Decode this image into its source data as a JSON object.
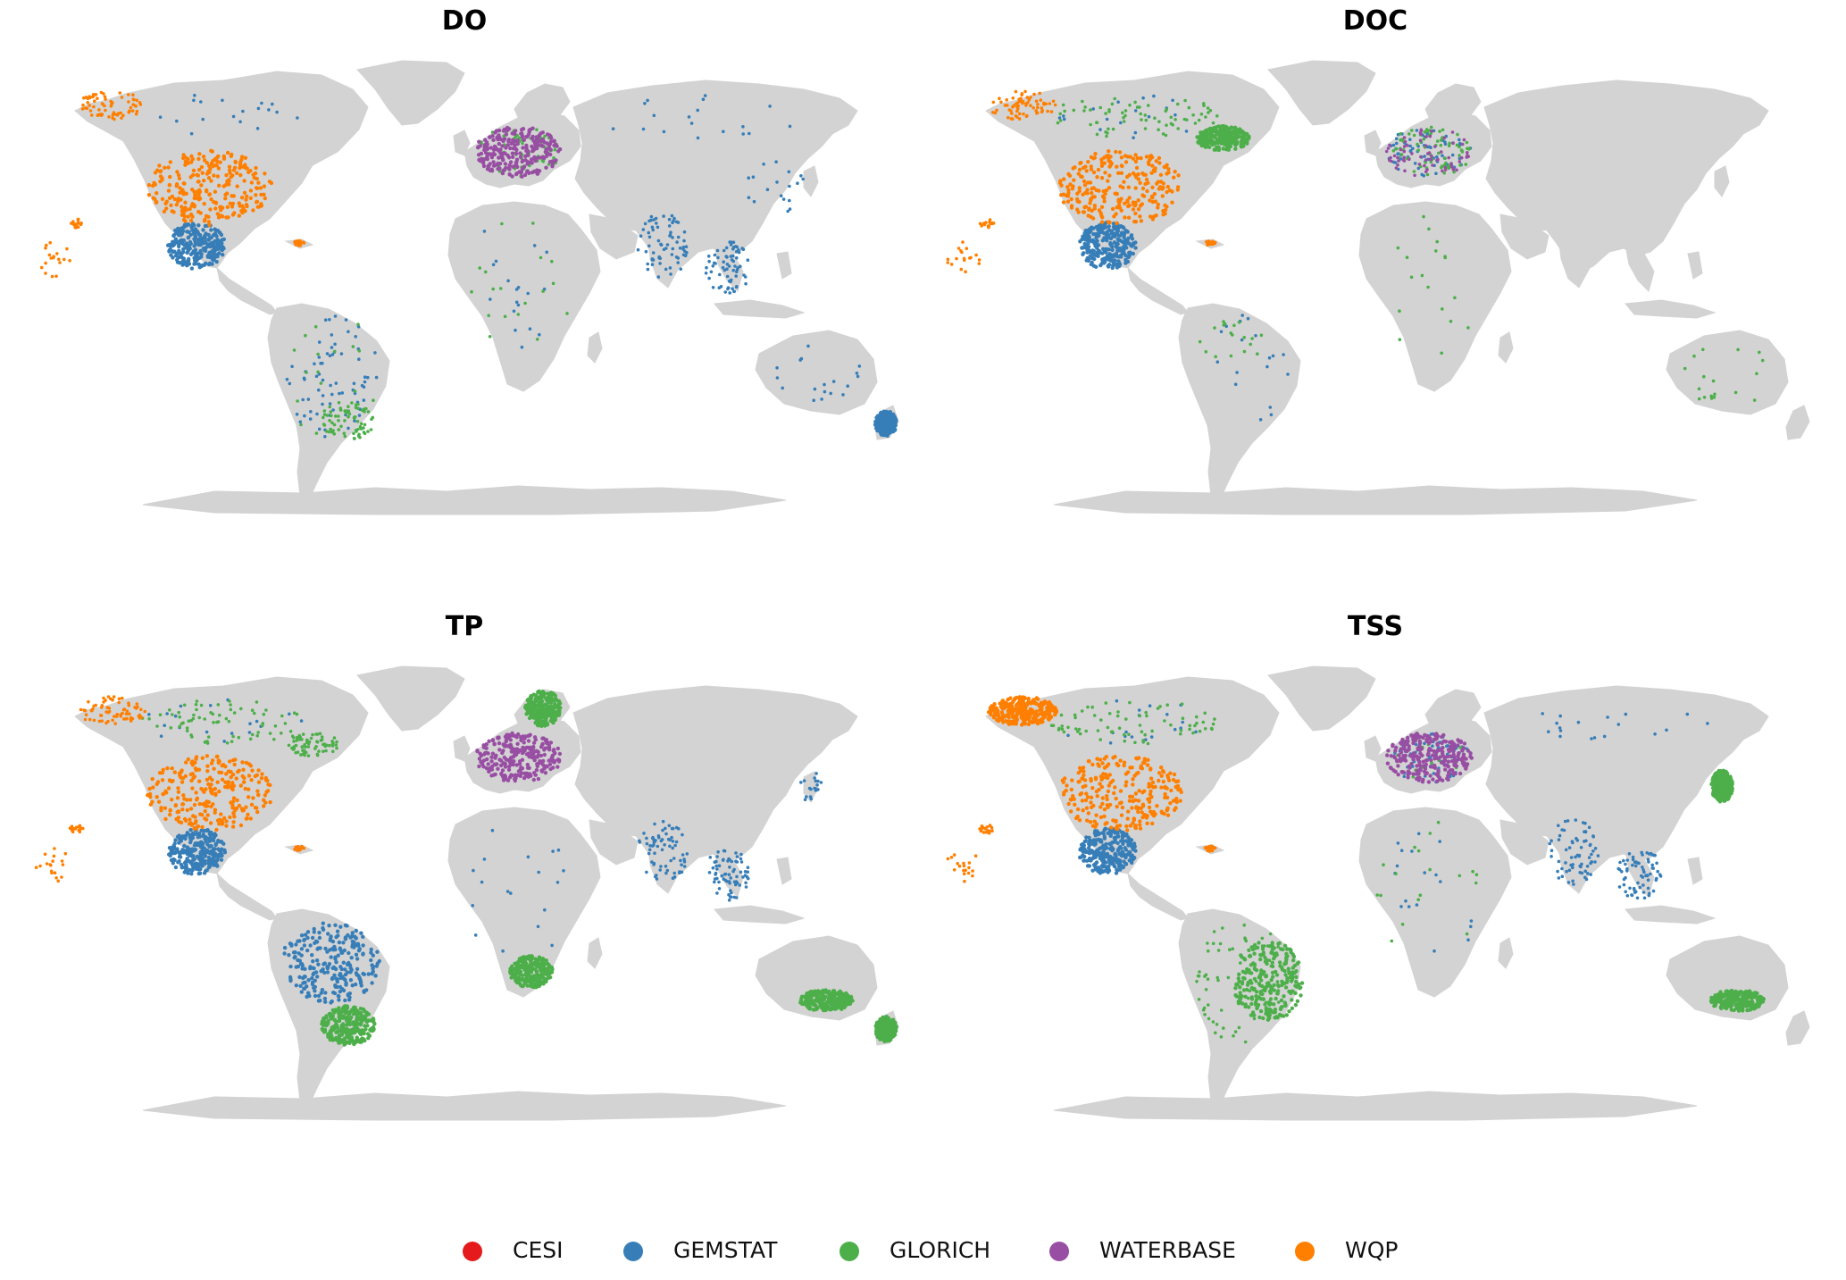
{
  "panels": [
    {
      "title": "DO",
      "sites": {
        "WQP": [
          {
            "region": "conterminous-us",
            "density": "dense"
          },
          {
            "region": "alaska",
            "density": "moderate"
          },
          {
            "region": "hawaii",
            "density": "sparse"
          },
          {
            "region": "puerto-rico",
            "density": "sparse"
          },
          {
            "region": "pacific-islands",
            "density": "sparse"
          }
        ],
        "GEMSTAT": [
          {
            "region": "mexico",
            "density": "dense"
          },
          {
            "region": "canada",
            "density": "sparse"
          },
          {
            "region": "south-america",
            "density": "moderate"
          },
          {
            "region": "africa",
            "density": "sparse"
          },
          {
            "region": "south-asia",
            "density": "moderate"
          },
          {
            "region": "southeast-asia",
            "density": "moderate"
          },
          {
            "region": "east-asia",
            "density": "sparse"
          },
          {
            "region": "russia",
            "density": "sparse"
          },
          {
            "region": "new-zealand",
            "density": "dense"
          },
          {
            "region": "australia",
            "density": "sparse"
          }
        ],
        "GLORICH": [
          {
            "region": "europe",
            "density": "moderate"
          },
          {
            "region": "south-america",
            "density": "sparse"
          },
          {
            "region": "southern-brazil",
            "density": "moderate"
          },
          {
            "region": "africa",
            "density": "sparse"
          }
        ],
        "WATERBASE": [
          {
            "region": "europe",
            "density": "dense"
          }
        ],
        "CESI": []
      }
    },
    {
      "title": "DOC",
      "sites": {
        "WQP": [
          {
            "region": "conterminous-us",
            "density": "dense"
          },
          {
            "region": "alaska",
            "density": "moderate"
          },
          {
            "region": "hawaii",
            "density": "sparse"
          },
          {
            "region": "puerto-rico",
            "density": "sparse"
          },
          {
            "region": "pacific-islands",
            "density": "sparse"
          }
        ],
        "GEMSTAT": [
          {
            "region": "mexico",
            "density": "dense"
          },
          {
            "region": "europe",
            "density": "moderate"
          },
          {
            "region": "canada",
            "density": "sparse"
          },
          {
            "region": "south-america",
            "density": "sparse"
          }
        ],
        "GLORICH": [
          {
            "region": "canada",
            "density": "moderate"
          },
          {
            "region": "eastern-canada",
            "density": "dense"
          },
          {
            "region": "europe",
            "density": "moderate"
          },
          {
            "region": "amazon",
            "density": "sparse"
          },
          {
            "region": "africa",
            "density": "sparse"
          },
          {
            "region": "australia",
            "density": "sparse"
          }
        ],
        "WATERBASE": [
          {
            "region": "europe",
            "density": "moderate"
          }
        ],
        "CESI": []
      }
    },
    {
      "title": "TP",
      "sites": {
        "WQP": [
          {
            "region": "conterminous-us",
            "density": "dense"
          },
          {
            "region": "alaska",
            "density": "moderate"
          },
          {
            "region": "hawaii",
            "density": "sparse"
          },
          {
            "region": "puerto-rico",
            "density": "sparse"
          },
          {
            "region": "pacific-islands",
            "density": "sparse"
          }
        ],
        "GEMSTAT": [
          {
            "region": "mexico",
            "density": "dense"
          },
          {
            "region": "brazil",
            "density": "dense"
          },
          {
            "region": "canada",
            "density": "sparse"
          },
          {
            "region": "south-asia",
            "density": "moderate"
          },
          {
            "region": "southeast-asia",
            "density": "moderate"
          },
          {
            "region": "japan",
            "density": "sparse"
          },
          {
            "region": "africa",
            "density": "sparse"
          }
        ],
        "GLORICH": [
          {
            "region": "canada",
            "density": "moderate"
          },
          {
            "region": "eastern-canada",
            "density": "moderate"
          },
          {
            "region": "scandinavia",
            "density": "dense"
          },
          {
            "region": "southern-brazil",
            "density": "dense"
          },
          {
            "region": "south-africa",
            "density": "dense"
          },
          {
            "region": "southeast-australia",
            "density": "dense"
          },
          {
            "region": "new-zealand",
            "density": "dense"
          }
        ],
        "WATERBASE": [
          {
            "region": "europe",
            "density": "dense"
          }
        ],
        "CESI": []
      }
    },
    {
      "title": "TSS",
      "sites": {
        "WQP": [
          {
            "region": "conterminous-us",
            "density": "dense"
          },
          {
            "region": "alaska",
            "density": "dense"
          },
          {
            "region": "hawaii",
            "density": "sparse"
          },
          {
            "region": "puerto-rico",
            "density": "sparse"
          },
          {
            "region": "pacific-islands",
            "density": "sparse"
          }
        ],
        "GEMSTAT": [
          {
            "region": "mexico",
            "density": "dense"
          },
          {
            "region": "europe",
            "density": "moderate"
          },
          {
            "region": "canada",
            "density": "sparse"
          },
          {
            "region": "south-asia",
            "density": "moderate"
          },
          {
            "region": "southeast-asia",
            "density": "moderate"
          },
          {
            "region": "africa",
            "density": "sparse"
          },
          {
            "region": "russia",
            "density": "sparse"
          }
        ],
        "GLORICH": [
          {
            "region": "canada",
            "density": "moderate"
          },
          {
            "region": "south-america",
            "density": "moderate"
          },
          {
            "region": "eastern-brazil",
            "density": "dense"
          },
          {
            "region": "japan",
            "density": "dense"
          },
          {
            "region": "southeast-australia",
            "density": "dense"
          },
          {
            "region": "europe",
            "density": "sparse"
          },
          {
            "region": "africa",
            "density": "sparse"
          }
        ],
        "WATERBASE": [
          {
            "region": "europe",
            "density": "dense"
          }
        ],
        "CESI": []
      }
    }
  ],
  "legend": [
    {
      "label": "CESI",
      "color": "#e41a1c"
    },
    {
      "label": "GEMSTAT",
      "color": "#377eb8"
    },
    {
      "label": "GLORICH",
      "color": "#4daf4a"
    },
    {
      "label": "WATERBASE",
      "color": "#984ea3"
    },
    {
      "label": "WQP",
      "color": "#ff7f00"
    }
  ],
  "colors": {
    "land": "#d3d3d3",
    "background": "#ffffff"
  }
}
